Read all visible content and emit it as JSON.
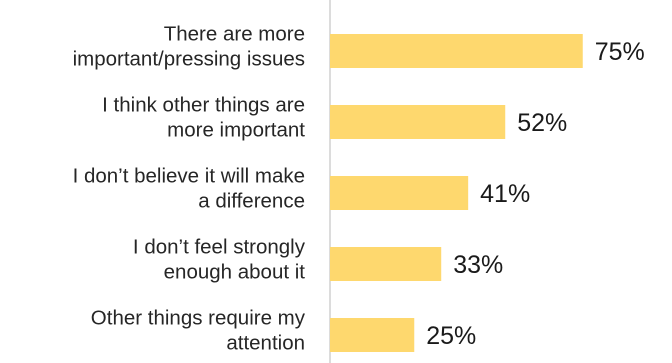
{
  "chart_data": {
    "type": "bar",
    "orientation": "horizontal",
    "categories": [
      [
        "There are more",
        "important/pressing issues"
      ],
      [
        "I think other things are",
        "more important"
      ],
      [
        "I don’t believe it will make",
        "a difference"
      ],
      [
        "I don’t feel strongly",
        "enough about it"
      ],
      [
        "Other things require my",
        "attention"
      ]
    ],
    "values": [
      75,
      52,
      41,
      33,
      25
    ],
    "value_labels": [
      "75%",
      "52%",
      "41%",
      "33%",
      "25%"
    ],
    "title": "",
    "xlabel": "",
    "ylabel": "",
    "xlim": [
      0,
      100
    ],
    "grid": false,
    "legend": "none",
    "bar_color": "#fed86e",
    "axis_color": "#d0d0d0"
  }
}
